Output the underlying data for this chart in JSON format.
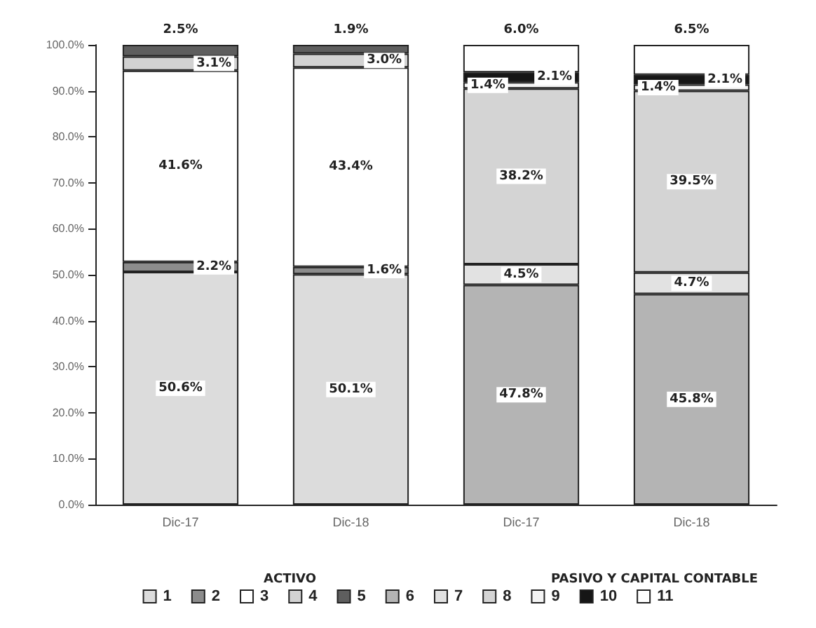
{
  "chart_data": {
    "type": "bar",
    "stacked": true,
    "categories": [
      "Dic-17",
      "Dic-18",
      "Dic-17",
      "Dic-18"
    ],
    "ylim": [
      0,
      100
    ],
    "yticks": [
      {
        "value": 0,
        "label": "0.0%"
      },
      {
        "value": 10,
        "label": "10.0%"
      },
      {
        "value": 20,
        "label": "20.0%"
      },
      {
        "value": 30,
        "label": "30.0%"
      },
      {
        "value": 40,
        "label": "40.0%"
      },
      {
        "value": 50,
        "label": "50.0%"
      },
      {
        "value": 60,
        "label": "60.0%"
      },
      {
        "value": 70,
        "label": "70.0%"
      },
      {
        "value": 80,
        "label": "80.0%"
      },
      {
        "value": 90,
        "label": "90.0%"
      },
      {
        "value": 100,
        "label": "100.0%"
      }
    ],
    "grid": false,
    "legend": "bottom",
    "annotations": [
      "ACTIVO",
      "PASIVO Y CAPITAL CONTABLE"
    ],
    "series": [
      {
        "name": "1",
        "color": "#dcdcdc",
        "values": [
          50.6,
          50.1,
          null,
          null
        ],
        "value_labels": [
          "50.6%",
          "50.1%",
          null,
          null
        ]
      },
      {
        "name": "2",
        "color": "#8c8c8c",
        "values": [
          2.2,
          1.6,
          null,
          null
        ],
        "value_labels": [
          "2.2%",
          "1.6%",
          null,
          null
        ]
      },
      {
        "name": "3",
        "color": "#ffffff",
        "values": [
          41.6,
          43.4,
          null,
          null
        ],
        "value_labels": [
          "41.6%",
          "43.4%",
          null,
          null
        ]
      },
      {
        "name": "4",
        "color": "#d2d2d2",
        "values": [
          3.1,
          3.0,
          null,
          null
        ],
        "value_labels": [
          "3.1%",
          "3.0%",
          null,
          null
        ]
      },
      {
        "name": "5",
        "color": "#5e5e5e",
        "values": [
          2.5,
          1.9,
          null,
          null
        ],
        "value_labels": [
          "2.5%",
          "1.9%",
          null,
          null
        ]
      },
      {
        "name": "6",
        "color": "#b4b4b4",
        "values": [
          null,
          null,
          47.8,
          45.8
        ],
        "value_labels": [
          null,
          null,
          "47.8%",
          "45.8%"
        ]
      },
      {
        "name": "7",
        "color": "#e2e2e2",
        "values": [
          null,
          null,
          4.5,
          4.7
        ],
        "value_labels": [
          null,
          null,
          "4.5%",
          "4.7%"
        ]
      },
      {
        "name": "8",
        "color": "#d4d4d4",
        "values": [
          null,
          null,
          38.2,
          39.5
        ],
        "value_labels": [
          null,
          null,
          "38.2%",
          "39.5%"
        ]
      },
      {
        "name": "9",
        "color": "#f4f4f4",
        "values": [
          null,
          null,
          1.4,
          1.4
        ],
        "value_labels": [
          null,
          null,
          "1.4%",
          "1.4%"
        ]
      },
      {
        "name": "10",
        "color": "#161616",
        "values": [
          null,
          null,
          2.1,
          2.1
        ],
        "value_labels": [
          null,
          null,
          "2.1%",
          "2.1%"
        ]
      },
      {
        "name": "11",
        "color": "#ffffff",
        "values": [
          null,
          null,
          6.0,
          6.5
        ],
        "value_labels": [
          null,
          null,
          "6.0%",
          "6.5%"
        ]
      }
    ]
  }
}
